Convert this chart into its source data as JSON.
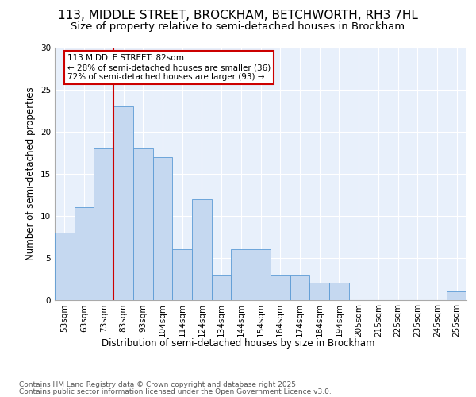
{
  "title1": "113, MIDDLE STREET, BROCKHAM, BETCHWORTH, RH3 7HL",
  "title2": "Size of property relative to semi-detached houses in Brockham",
  "xlabel": "Distribution of semi-detached houses by size in Brockham",
  "ylabel": "Number of semi-detached properties",
  "categories": [
    "53sqm",
    "63sqm",
    "73sqm",
    "83sqm",
    "93sqm",
    "104sqm",
    "114sqm",
    "124sqm",
    "134sqm",
    "144sqm",
    "154sqm",
    "164sqm",
    "174sqm",
    "184sqm",
    "194sqm",
    "205sqm",
    "215sqm",
    "225sqm",
    "235sqm",
    "245sqm",
    "255sqm"
  ],
  "values": [
    8,
    11,
    18,
    23,
    18,
    17,
    6,
    12,
    3,
    6,
    6,
    3,
    3,
    2,
    2,
    0,
    0,
    0,
    0,
    0,
    1
  ],
  "bar_color": "#c5d8f0",
  "bar_edge_color": "#5b9bd5",
  "highlight_color_edge": "#cc0000",
  "vline_color": "#cc0000",
  "annotation_text": "113 MIDDLE STREET: 82sqm\n← 28% of semi-detached houses are smaller (36)\n72% of semi-detached houses are larger (93) →",
  "annotation_box_color": "#ffffff",
  "annotation_box_edge": "#cc0000",
  "ylim": [
    0,
    30
  ],
  "yticks": [
    0,
    5,
    10,
    15,
    20,
    25,
    30
  ],
  "footnote1": "Contains HM Land Registry data © Crown copyright and database right 2025.",
  "footnote2": "Contains public sector information licensed under the Open Government Licence v3.0.",
  "bg_color": "#e8f0fb",
  "fig_bg_color": "#ffffff",
  "title1_fontsize": 11,
  "title2_fontsize": 9.5,
  "axis_label_fontsize": 8.5,
  "tick_fontsize": 7.5,
  "annotation_fontsize": 7.5,
  "footnote_fontsize": 6.5
}
